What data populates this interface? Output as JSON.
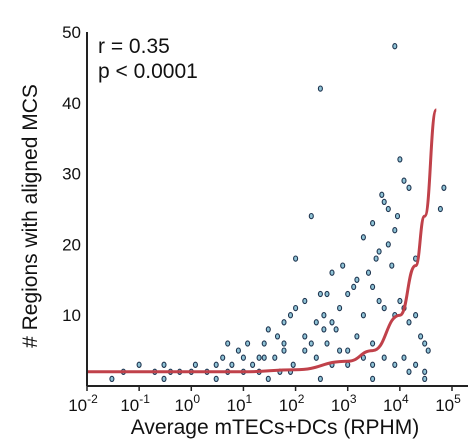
{
  "chart_data": {
    "type": "scatter",
    "title": "",
    "xlabel": "Average mTECs+DCs (RPHM)",
    "ylabel": "# Regions with aligned MCS",
    "x_scale": "log10",
    "xlim": [
      0.01,
      100000
    ],
    "ylim": [
      0,
      50
    ],
    "x_ticks": [
      {
        "base": "10",
        "exp": "-2"
      },
      {
        "base": "10",
        "exp": "-1"
      },
      {
        "base": "10",
        "exp": "0"
      },
      {
        "base": "10",
        "exp": "1"
      },
      {
        "base": "10",
        "exp": "2"
      },
      {
        "base": "10",
        "exp": "3"
      },
      {
        "base": "10",
        "exp": "4"
      },
      {
        "base": "10",
        "exp": "5"
      }
    ],
    "y_ticks": [
      "10",
      "20",
      "30",
      "40",
      "50"
    ],
    "y_tick_values": [
      10,
      20,
      30,
      40,
      50
    ],
    "annotations": [
      "r = 0.35",
      "p < 0.0001"
    ],
    "grid": false,
    "colors": {
      "points_stroke": "#1f3550",
      "points_fill": "#8fc3d6",
      "fit": "#c0414a",
      "axis": "#222222"
    },
    "series": [
      {
        "marker": "open-ellipse",
        "points": [
          [
            0.6,
            2
          ],
          [
            1.2,
            3
          ],
          [
            3.0,
            3
          ],
          [
            1.0,
            2
          ],
          [
            0.2,
            2
          ],
          [
            0.05,
            2
          ],
          [
            0.4,
            2
          ],
          [
            2.0,
            2
          ],
          [
            5,
            6
          ],
          [
            8,
            5
          ],
          [
            12,
            6
          ],
          [
            20,
            4
          ],
          [
            30,
            8
          ],
          [
            45,
            7
          ],
          [
            60,
            9
          ],
          [
            80,
            10
          ],
          [
            100,
            11
          ],
          [
            150,
            12
          ],
          [
            200,
            6
          ],
          [
            250,
            9
          ],
          [
            300,
            13
          ],
          [
            350,
            8
          ],
          [
            500,
            9
          ],
          [
            700,
            11
          ],
          [
            1000,
            13
          ],
          [
            1300,
            14
          ],
          [
            1500,
            15
          ],
          [
            2000,
            10
          ],
          [
            2500,
            16
          ],
          [
            3000,
            14
          ],
          [
            3500,
            18
          ],
          [
            4000,
            12
          ],
          [
            5000,
            11
          ],
          [
            6000,
            20
          ],
          [
            7000,
            17
          ],
          [
            8000,
            10
          ],
          [
            10000,
            12
          ],
          [
            12000,
            11
          ],
          [
            15000,
            9
          ],
          [
            20000,
            10
          ],
          [
            25000,
            7
          ],
          [
            30000,
            6
          ],
          [
            35000,
            5
          ],
          [
            8000,
            22
          ],
          [
            9000,
            24
          ],
          [
            6000,
            25
          ],
          [
            3000,
            23
          ],
          [
            4500,
            27
          ],
          [
            5000,
            26
          ],
          [
            4000,
            19
          ],
          [
            2000,
            21
          ],
          [
            800,
            17
          ],
          [
            500,
            16
          ],
          [
            400,
            13
          ],
          [
            200,
            24
          ],
          [
            100,
            18
          ],
          [
            300,
            42
          ],
          [
            8000,
            48
          ],
          [
            70000,
            28
          ],
          [
            60000,
            25
          ],
          [
            10000,
            32
          ],
          [
            12000,
            29
          ],
          [
            15000,
            28
          ],
          [
            20000,
            18
          ],
          [
            3000,
            6
          ],
          [
            1500,
            7
          ],
          [
            700,
            5
          ],
          [
            400,
            6
          ],
          [
            250,
            4
          ],
          [
            150,
            5
          ],
          [
            90,
            3
          ],
          [
            60,
            5
          ],
          [
            40,
            4
          ],
          [
            25,
            4
          ],
          [
            15,
            3
          ],
          [
            10,
            4
          ],
          [
            6,
            3
          ],
          [
            4,
            4
          ],
          [
            0.3,
            3
          ],
          [
            0.1,
            3
          ],
          [
            80,
            2
          ],
          [
            5000,
            4
          ],
          [
            8000,
            3
          ],
          [
            12000,
            4
          ],
          [
            20000,
            3
          ],
          [
            30000,
            2
          ],
          [
            2000,
            4
          ],
          [
            1000,
            5
          ],
          [
            600,
            8
          ],
          [
            350,
            10
          ],
          [
            150,
            7
          ],
          [
            60,
            6
          ],
          [
            25,
            6
          ],
          [
            10,
            2
          ],
          [
            20,
            2
          ],
          [
            50,
            2
          ],
          [
            5,
            2
          ],
          [
            500,
            3
          ],
          [
            1000,
            3
          ],
          [
            3000,
            3
          ],
          [
            15000,
            2
          ],
          [
            3,
            1
          ],
          [
            30,
            1
          ],
          [
            300,
            1
          ],
          [
            3000,
            1
          ],
          [
            30000,
            1
          ],
          [
            0.03,
            1
          ],
          [
            0.3,
            1
          ]
        ]
      }
    ],
    "fit_line": {
      "label": "",
      "x": [
        0.01,
        1,
        10,
        100,
        1000,
        3000,
        10000,
        20000,
        30000,
        50000
      ],
      "y": [
        2.0,
        2.0,
        2.0,
        2.3,
        3.5,
        5.0,
        10.0,
        17.0,
        24.0,
        39.0
      ]
    }
  }
}
